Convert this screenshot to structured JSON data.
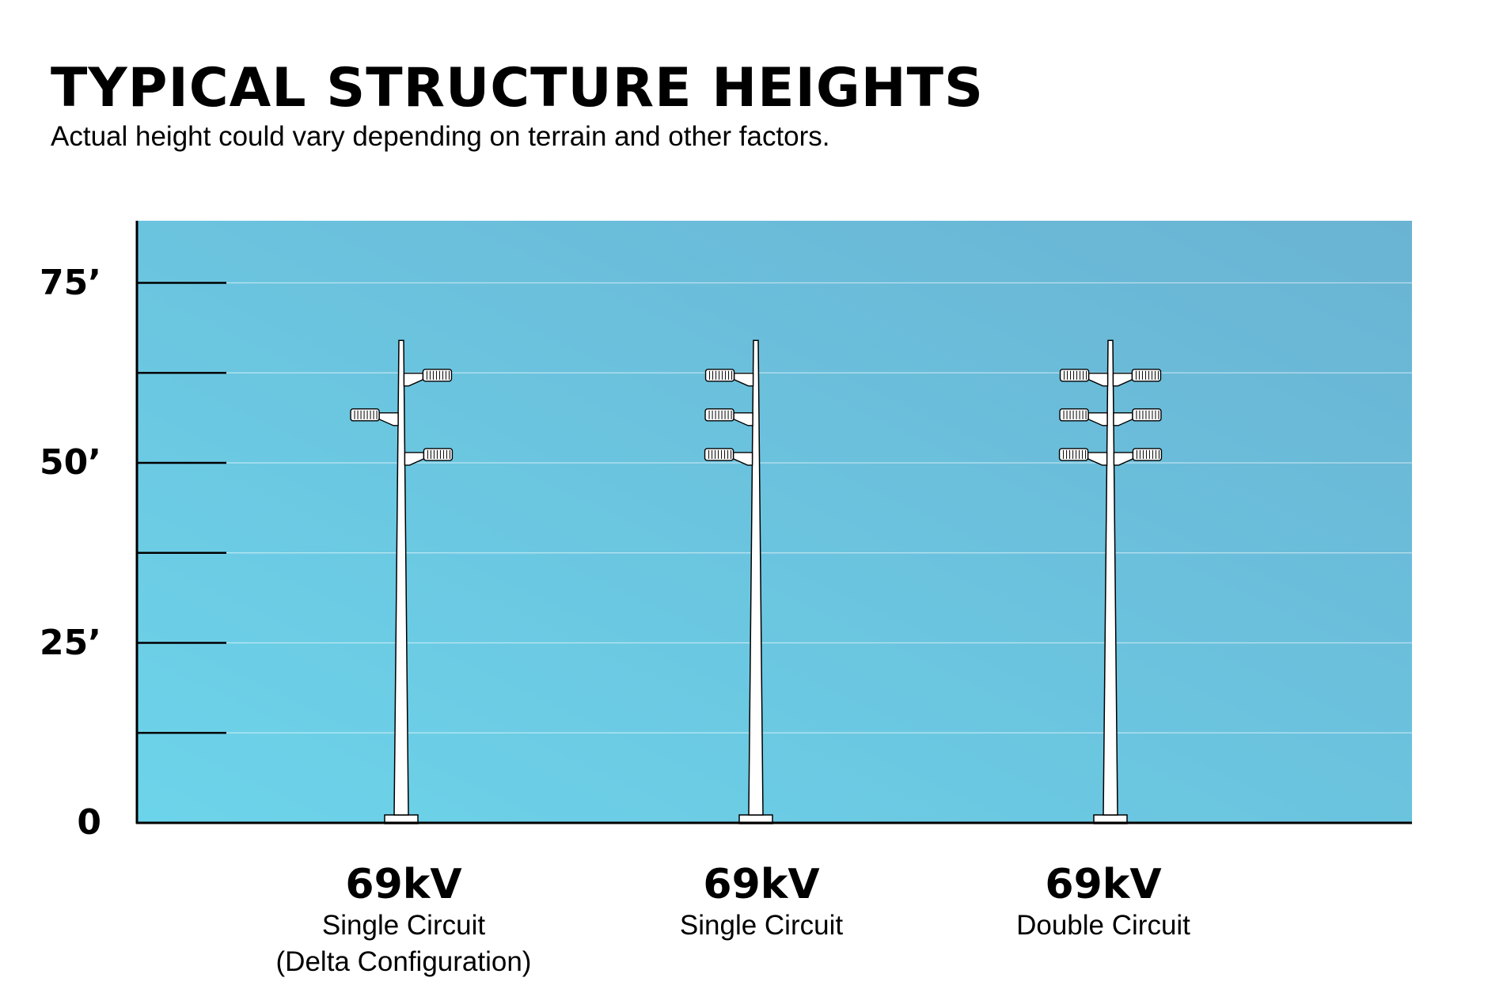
{
  "header": {
    "title": "TYPICAL STRUCTURE HEIGHTS",
    "subtitle": "Actual height could vary depending on terrain and other factors."
  },
  "chart_data": {
    "type": "diagram",
    "y_unit": "feet",
    "ylim": [
      0,
      85
    ],
    "y_tick_labels": [
      {
        "value": 75,
        "label": "75’"
      },
      {
        "value": 50,
        "label": "50’"
      },
      {
        "value": 25,
        "label": "25’"
      },
      {
        "value": 0,
        "label": "0"
      }
    ],
    "minor_ticks": [
      12.5,
      37.5,
      62.5
    ],
    "background_gradient": [
      "#6cd4ea",
      "#6ab3d3"
    ],
    "structures": [
      {
        "voltage": "69kV",
        "description_lines": [
          "Single Circuit",
          "(Delta Configuration)"
        ],
        "height_ft": 67,
        "insulators": [
          {
            "side": "right",
            "height_ft": 62
          },
          {
            "side": "left",
            "height_ft": 56.5
          },
          {
            "side": "right",
            "height_ft": 51
          }
        ]
      },
      {
        "voltage": "69kV",
        "description_lines": [
          "Single Circuit"
        ],
        "height_ft": 67,
        "insulators": [
          {
            "side": "left",
            "height_ft": 62
          },
          {
            "side": "left",
            "height_ft": 56.5
          },
          {
            "side": "left",
            "height_ft": 51
          }
        ]
      },
      {
        "voltage": "69kV",
        "description_lines": [
          "Double Circuit"
        ],
        "height_ft": 67,
        "insulators": [
          {
            "side": "left",
            "height_ft": 62
          },
          {
            "side": "right",
            "height_ft": 62
          },
          {
            "side": "left",
            "height_ft": 56.5
          },
          {
            "side": "right",
            "height_ft": 56.5
          },
          {
            "side": "left",
            "height_ft": 51
          },
          {
            "side": "right",
            "height_ft": 51
          }
        ]
      }
    ]
  }
}
